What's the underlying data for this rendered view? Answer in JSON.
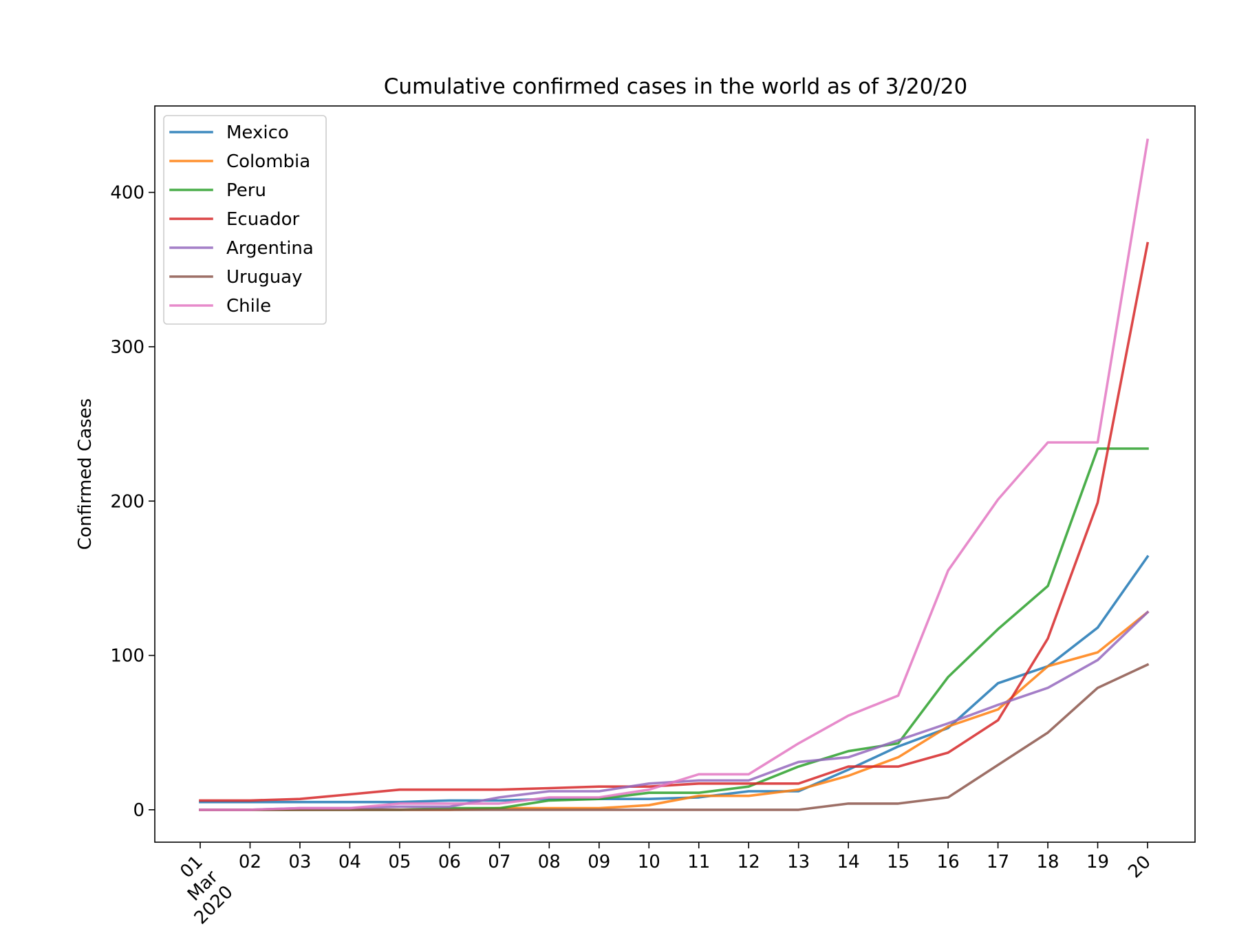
{
  "chart_data": {
    "type": "line",
    "title": "Cumulative confirmed cases in the world as of 3/20/20",
    "xlabel": "",
    "ylabel": "Confirmed Cases",
    "x": [
      "01",
      "02",
      "03",
      "04",
      "05",
      "06",
      "07",
      "08",
      "09",
      "10",
      "11",
      "12",
      "13",
      "14",
      "15",
      "16",
      "17",
      "18",
      "19",
      "20"
    ],
    "x_first_tick_extra": [
      "Mar",
      "2020"
    ],
    "y_ticks": [
      0,
      100,
      200,
      300,
      400
    ],
    "ylim": [
      -21,
      456
    ],
    "grid": false,
    "legend_position": "top-left",
    "series": [
      {
        "name": "Mexico",
        "color": "#1f77b4",
        "values": [
          5,
          5,
          5,
          5,
          5,
          6,
          6,
          7,
          7,
          7,
          8,
          12,
          12,
          26,
          41,
          53,
          82,
          93,
          118,
          164
        ]
      },
      {
        "name": "Colombia",
        "color": "#ff7f0e",
        "values": [
          0,
          0,
          0,
          0,
          0,
          0,
          1,
          1,
          1,
          3,
          9,
          9,
          13,
          22,
          34,
          54,
          65,
          93,
          102,
          128
        ]
      },
      {
        "name": "Peru",
        "color": "#2ca02c",
        "values": [
          0,
          0,
          0,
          0,
          0,
          1,
          1,
          6,
          7,
          11,
          11,
          15,
          28,
          38,
          43,
          86,
          117,
          145,
          234,
          234
        ]
      },
      {
        "name": "Ecuador",
        "color": "#d62728",
        "values": [
          6,
          6,
          7,
          10,
          13,
          13,
          13,
          14,
          15,
          15,
          17,
          17,
          17,
          28,
          28,
          37,
          58,
          111,
          199,
          367
        ]
      },
      {
        "name": "Argentina",
        "color": "#9467bd",
        "values": [
          0,
          0,
          1,
          1,
          2,
          2,
          8,
          12,
          12,
          17,
          19,
          19,
          31,
          34,
          45,
          56,
          68,
          79,
          97,
          128
        ]
      },
      {
        "name": "Uruguay",
        "color": "#8c564b",
        "values": [
          0,
          0,
          0,
          0,
          0,
          0,
          0,
          0,
          0,
          0,
          0,
          0,
          0,
          4,
          4,
          8,
          29,
          50,
          79,
          94
        ]
      },
      {
        "name": "Chile",
        "color": "#e377c2",
        "values": [
          0,
          0,
          1,
          1,
          4,
          4,
          4,
          8,
          8,
          13,
          23,
          23,
          43,
          61,
          74,
          155,
          201,
          238,
          238,
          434
        ]
      }
    ]
  }
}
